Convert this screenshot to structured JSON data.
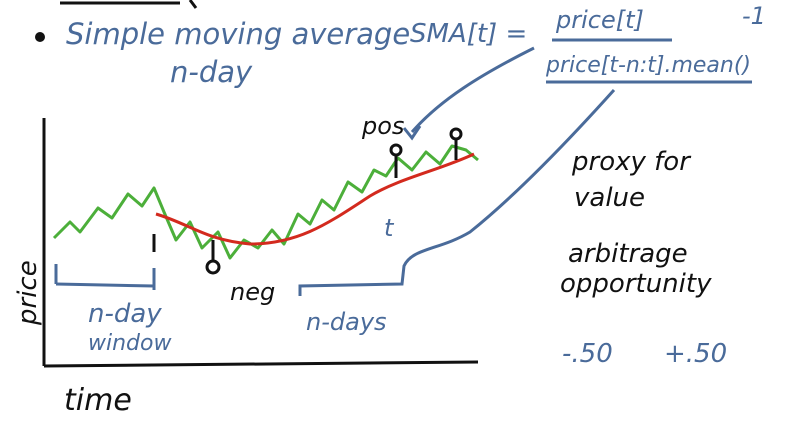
{
  "bullet": {
    "intro": "Simple moving average",
    "formula_lhs": "SMA[t] =",
    "numerator": "price[t]",
    "minus_one": "-1",
    "denominator": "price[t-n:t].mean()",
    "subtitle": "n-day"
  },
  "chart": {
    "axis_y_label": "price",
    "axis_x_label": "time",
    "window_label_line1": "n-day",
    "window_label_line2": "window",
    "tick_label": "t",
    "pos_label": "pos",
    "neg_label": "neg",
    "ndays_label": "n-days"
  },
  "notes": {
    "proxy_line1": "proxy for",
    "proxy_line2": "value",
    "arb_line1": "arbitrage",
    "arb_line2": "opportunity",
    "neg_value": "-.50",
    "pos_value": "+.50"
  },
  "colors": {
    "ink_blue": "#4a6b9a",
    "ink_black": "#111111",
    "price_green": "#4caf3a",
    "sma_red": "#d32a1e"
  }
}
